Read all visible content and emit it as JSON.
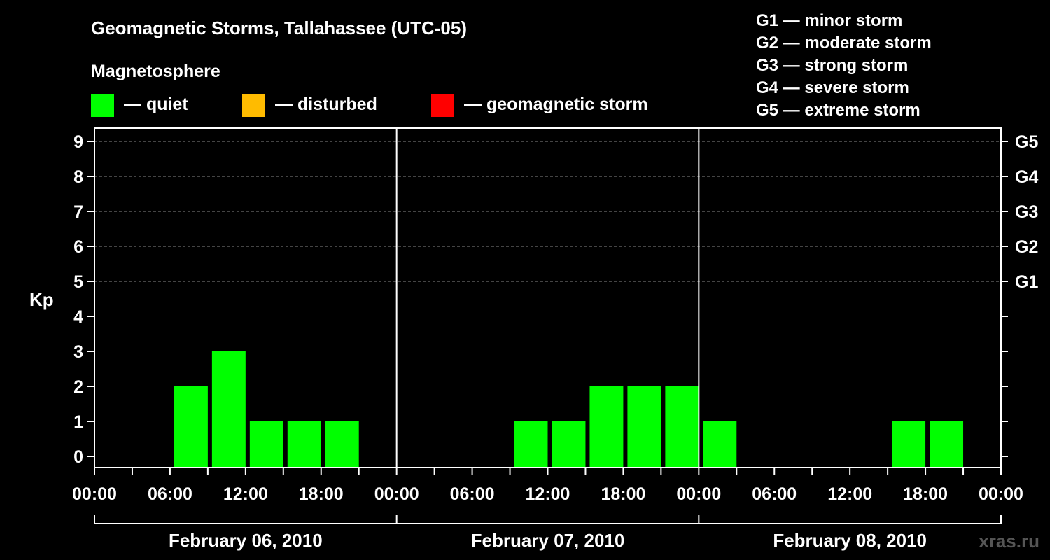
{
  "title": "Geomagnetic Storms, Tallahassee (UTC-05)",
  "legend": {
    "heading": "Magnetosphere",
    "items": [
      {
        "label": "— quiet",
        "color": "#00ff00"
      },
      {
        "label": "— disturbed",
        "color": "#ffbb00"
      },
      {
        "label": "— geomagnetic storm",
        "color": "#ff0000"
      }
    ]
  },
  "storm_scale": [
    "G1 — minor storm",
    "G2 — moderate storm",
    "G3 — strong storm",
    "G4 — severe storm",
    "G5 — extreme storm"
  ],
  "watermark": "xras.ru",
  "chart_data": {
    "type": "bar",
    "ylabel": "Kp",
    "ylim": [
      0,
      9
    ],
    "y_ticks": [
      0,
      1,
      2,
      3,
      4,
      5,
      6,
      7,
      8,
      9
    ],
    "right_axis_labels": [
      {
        "kp": 5,
        "label": "G1"
      },
      {
        "kp": 6,
        "label": "G2"
      },
      {
        "kp": 7,
        "label": "G3"
      },
      {
        "kp": 8,
        "label": "G4"
      },
      {
        "kp": 9,
        "label": "G5"
      }
    ],
    "grid": "dashed horizontal at Kp 5-9",
    "x_tick_labels": [
      "00:00",
      "06:00",
      "12:00",
      "18:00",
      "00:00",
      "06:00",
      "12:00",
      "18:00",
      "00:00",
      "06:00",
      "12:00",
      "18:00",
      "00:00"
    ],
    "dates": [
      "February 06, 2010",
      "February 07, 2010",
      "February 08, 2010"
    ],
    "interval_hours": 3,
    "bar_color": "#00ff00",
    "bars": [
      {
        "date": "February 06, 2010",
        "start": "00:00",
        "kp": 0
      },
      {
        "date": "February 06, 2010",
        "start": "03:00",
        "kp": 0
      },
      {
        "date": "February 06, 2010",
        "start": "06:00",
        "kp": 2
      },
      {
        "date": "February 06, 2010",
        "start": "09:00",
        "kp": 3
      },
      {
        "date": "February 06, 2010",
        "start": "12:00",
        "kp": 1
      },
      {
        "date": "February 06, 2010",
        "start": "15:00",
        "kp": 1
      },
      {
        "date": "February 06, 2010",
        "start": "18:00",
        "kp": 1
      },
      {
        "date": "February 06, 2010",
        "start": "21:00",
        "kp": 0
      },
      {
        "date": "February 07, 2010",
        "start": "00:00",
        "kp": 0
      },
      {
        "date": "February 07, 2010",
        "start": "03:00",
        "kp": 0
      },
      {
        "date": "February 07, 2010",
        "start": "06:00",
        "kp": 0
      },
      {
        "date": "February 07, 2010",
        "start": "09:00",
        "kp": 1
      },
      {
        "date": "February 07, 2010",
        "start": "12:00",
        "kp": 1
      },
      {
        "date": "February 07, 2010",
        "start": "15:00",
        "kp": 2
      },
      {
        "date": "February 07, 2010",
        "start": "18:00",
        "kp": 2
      },
      {
        "date": "February 07, 2010",
        "start": "21:00",
        "kp": 2
      },
      {
        "date": "February 08, 2010",
        "start": "00:00",
        "kp": 1
      },
      {
        "date": "February 08, 2010",
        "start": "03:00",
        "kp": 0
      },
      {
        "date": "February 08, 2010",
        "start": "06:00",
        "kp": 0
      },
      {
        "date": "February 08, 2010",
        "start": "09:00",
        "kp": 0
      },
      {
        "date": "February 08, 2010",
        "start": "12:00",
        "kp": 0
      },
      {
        "date": "February 08, 2010",
        "start": "15:00",
        "kp": 1
      },
      {
        "date": "February 08, 2010",
        "start": "18:00",
        "kp": 1
      },
      {
        "date": "February 08, 2010",
        "start": "21:00",
        "kp": 0
      }
    ]
  }
}
